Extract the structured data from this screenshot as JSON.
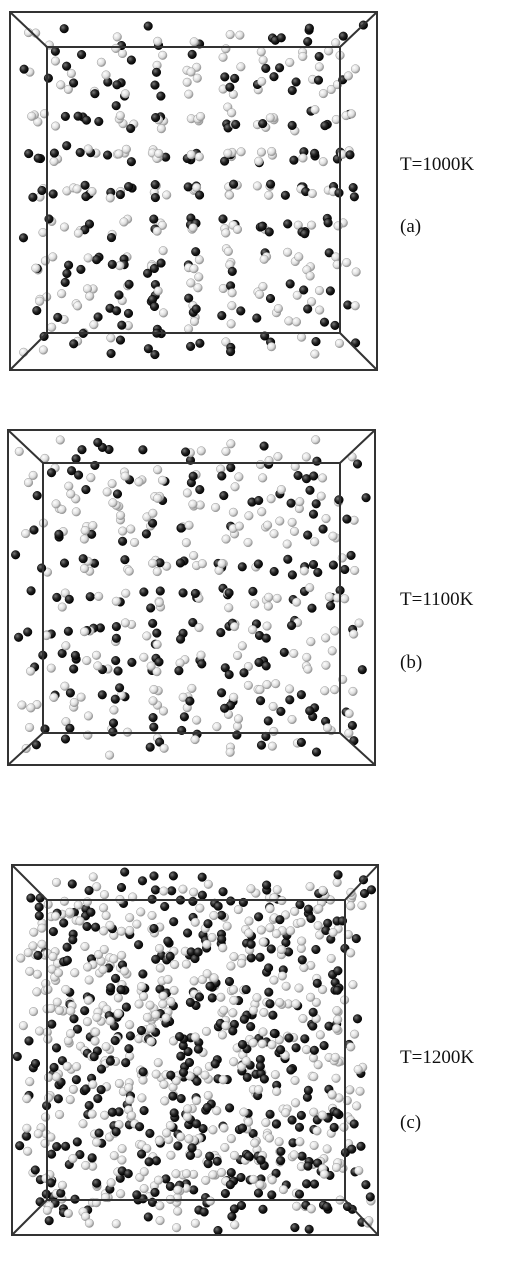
{
  "panels": [
    {
      "temperature": "T=1000K",
      "label": "(a)"
    },
    {
      "temperature": "T=1100K",
      "label": "(b)"
    },
    {
      "temperature": "T=1200K",
      "label": "(c)"
    }
  ]
}
